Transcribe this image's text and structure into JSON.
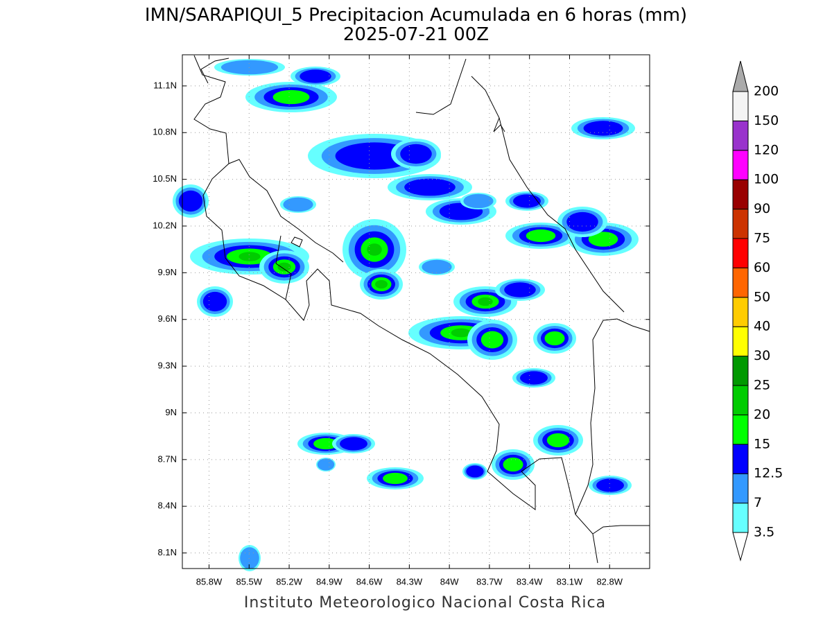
{
  "header": {
    "title": "IMN/SARAPIQUI_5 Precipitacion Acumulada en 6 horas (mm)",
    "subtitle": "2025-07-21 00Z"
  },
  "footer": "Instituto Meteorologico Nacional Costa Rica",
  "map": {
    "lon_range": [
      -86.0,
      -82.5
    ],
    "lat_range": [
      8.0,
      11.3
    ],
    "lon_ticks": [
      {
        "value": -85.8,
        "label": "85.8W"
      },
      {
        "value": -85.5,
        "label": "85.5W"
      },
      {
        "value": -85.2,
        "label": "85.2W"
      },
      {
        "value": -84.9,
        "label": "84.9W"
      },
      {
        "value": -84.6,
        "label": "84.6W"
      },
      {
        "value": -84.3,
        "label": "84.3W"
      },
      {
        "value": -84.0,
        "label": "84W"
      },
      {
        "value": -83.7,
        "label": "83.7W"
      },
      {
        "value": -83.4,
        "label": "83.4W"
      },
      {
        "value": -83.1,
        "label": "83.1W"
      },
      {
        "value": -82.8,
        "label": "82.8W"
      }
    ],
    "lat_ticks": [
      {
        "value": 11.1,
        "label": "11.1N"
      },
      {
        "value": 10.8,
        "label": "10.8N"
      },
      {
        "value": 10.5,
        "label": "10.5N"
      },
      {
        "value": 10.2,
        "label": "10.2N"
      },
      {
        "value": 9.9,
        "label": "9.9N"
      },
      {
        "value": 9.6,
        "label": "9.6N"
      },
      {
        "value": 9.3,
        "label": "9.3N"
      },
      {
        "value": 9.0,
        "label": "9N"
      },
      {
        "value": 8.7,
        "label": "8.7N"
      },
      {
        "value": 8.4,
        "label": "8.4N"
      },
      {
        "value": 8.1,
        "label": "8.1N"
      }
    ],
    "grid": true
  },
  "colorbar": {
    "levels": [
      3.5,
      7,
      12.5,
      15,
      20,
      25,
      30,
      40,
      50,
      60,
      75,
      90,
      100,
      120,
      150,
      200
    ],
    "colors": [
      "#66ffff",
      "#3399ff",
      "#0000ff",
      "#00ff00",
      "#00cc00",
      "#009900",
      "#ffff00",
      "#ffcc00",
      "#ff6600",
      "#ff0000",
      "#cc3300",
      "#990000",
      "#ff00ff",
      "#9933cc",
      "#f4f4f4"
    ],
    "under_color": "#ffffff",
    "over_color": "#aaaaaa"
  }
}
